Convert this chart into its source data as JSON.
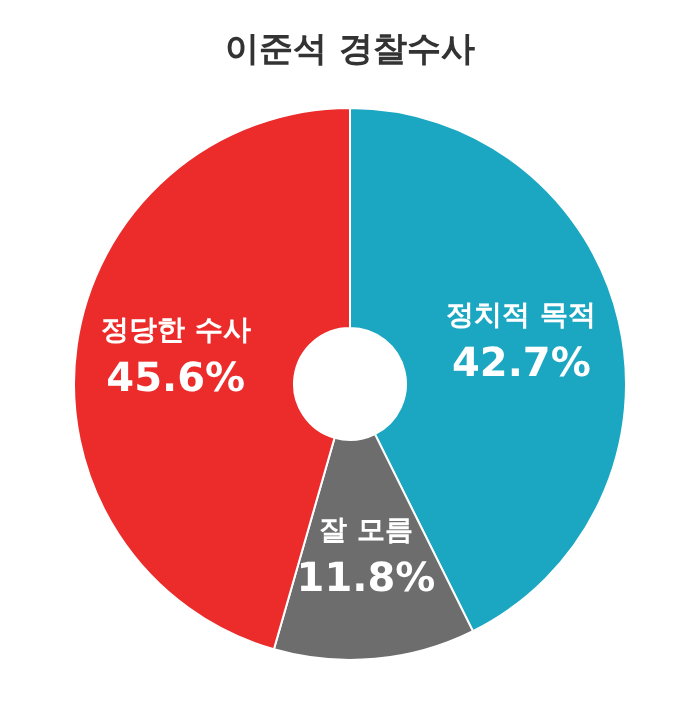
{
  "chart_data": {
    "type": "donut",
    "title": "이준석 경찰수사",
    "categories": [
      "정치적 목적",
      "잘 모름",
      "정당한 수사"
    ],
    "values": [
      42.7,
      11.8,
      45.6
    ],
    "colors": [
      "#1ba7c1",
      "#6d6d6d",
      "#ec2b2b"
    ],
    "value_labels": [
      "42.7%",
      "11.8%",
      "45.6%"
    ]
  }
}
